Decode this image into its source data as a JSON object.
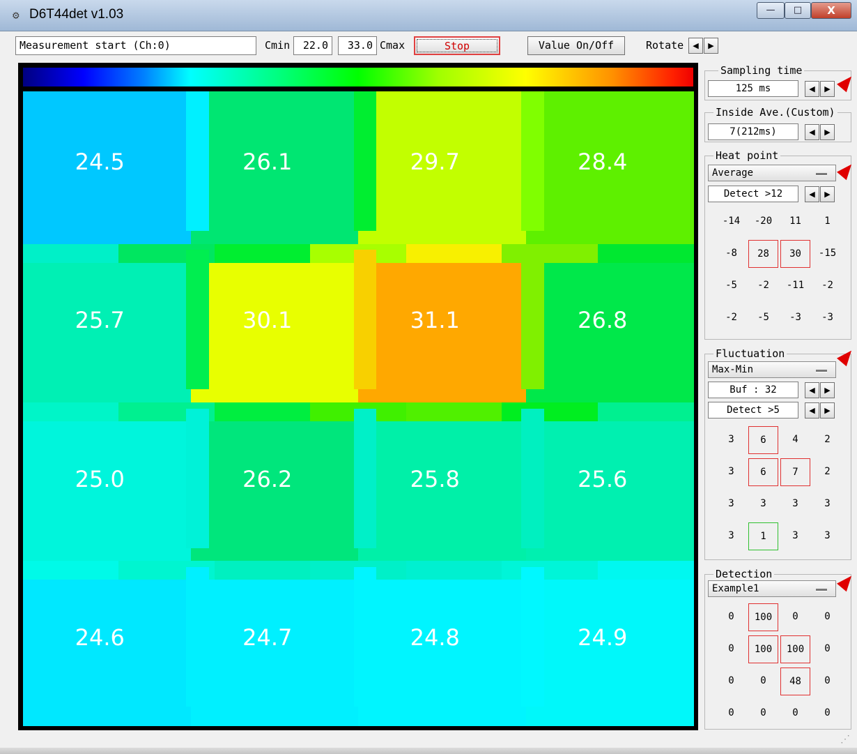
{
  "window": {
    "title": "D6T44det  v1.03",
    "min_glyph": "—",
    "max_glyph": "□",
    "close_glyph": "X"
  },
  "toolbar": {
    "status": "Measurement start (Ch:0)",
    "cmin_label": "Cmin",
    "cmin_value": "22.0",
    "cmax_value": "33.0",
    "cmax_label": "Cmax",
    "stop_label": "Stop",
    "value_toggle_label": "Value On/Off",
    "rotate_label": "Rotate"
  },
  "heatmap": {
    "cells": [
      {
        "value": "24.5",
        "color": "#00c8ff"
      },
      {
        "value": "26.1",
        "color": "#00e672"
      },
      {
        "value": "29.7",
        "color": "#c2ff00"
      },
      {
        "value": "28.4",
        "color": "#5ef000"
      },
      {
        "value": "25.7",
        "color": "#00f0b4"
      },
      {
        "value": "30.1",
        "color": "#e8ff00"
      },
      {
        "value": "31.1",
        "color": "#ffa800"
      },
      {
        "value": "26.8",
        "color": "#00e84a"
      },
      {
        "value": "25.0",
        "color": "#00f5dc"
      },
      {
        "value": "26.2",
        "color": "#00e67c"
      },
      {
        "value": "25.8",
        "color": "#00f0a8"
      },
      {
        "value": "25.6",
        "color": "#00f0b0"
      },
      {
        "value": "24.6",
        "color": "#00e8ff"
      },
      {
        "value": "24.7",
        "color": "#00f0ff"
      },
      {
        "value": "24.8",
        "color": "#00f5ff"
      },
      {
        "value": "24.9",
        "color": "#00f8fa"
      }
    ],
    "hband_colors": [
      [
        "#00f0c8",
        "#00e660",
        "#00ee30",
        "#a8ff00",
        "#f8f000",
        "#80f000",
        "#00e830"
      ],
      [
        "#00f5c8",
        "#00f090",
        "#00ee40",
        "#40f000",
        "#50f000",
        "#00ee20",
        "#00f090"
      ],
      [
        "#00fae8",
        "#00f5d0",
        "#00f0c0",
        "#00f0c8",
        "#00f0d0",
        "#00f5d8",
        "#00f8f0"
      ]
    ],
    "vband_colors": [
      [
        "#00f0ff",
        "#00ee30",
        "#80ff00"
      ],
      [
        "#00ee50",
        "#f8d000",
        "#80f000"
      ],
      [
        "#00f2d8",
        "#00f0c8",
        "#00f0c0"
      ],
      [
        "#00f0ff",
        "#00f5ff",
        "#00f8ff"
      ]
    ]
  },
  "sampling": {
    "label": "Sampling time",
    "value": "125 ms"
  },
  "inside_ave": {
    "label": "Inside Ave.(Custom)",
    "value": "7(212ms)"
  },
  "heat_point": {
    "label": "Heat point",
    "mode": "Average",
    "detect": "Detect >12",
    "grid": [
      {
        "v": "-14",
        "b": ""
      },
      {
        "v": "-20",
        "b": ""
      },
      {
        "v": "11",
        "b": ""
      },
      {
        "v": "1",
        "b": ""
      },
      {
        "v": "-8",
        "b": ""
      },
      {
        "v": "28",
        "b": "red"
      },
      {
        "v": "30",
        "b": "red"
      },
      {
        "v": "-15",
        "b": ""
      },
      {
        "v": "-5",
        "b": ""
      },
      {
        "v": "-2",
        "b": ""
      },
      {
        "v": "-11",
        "b": ""
      },
      {
        "v": "-2",
        "b": ""
      },
      {
        "v": "-2",
        "b": ""
      },
      {
        "v": "-5",
        "b": ""
      },
      {
        "v": "-3",
        "b": ""
      },
      {
        "v": "-3",
        "b": ""
      }
    ]
  },
  "fluctuation": {
    "label": "Fluctuation",
    "mode": "Max-Min",
    "buf": "Buf : 32",
    "detect": "Detect >5",
    "grid": [
      {
        "v": "3",
        "b": ""
      },
      {
        "v": "6",
        "b": "red"
      },
      {
        "v": "4",
        "b": ""
      },
      {
        "v": "2",
        "b": ""
      },
      {
        "v": "3",
        "b": ""
      },
      {
        "v": "6",
        "b": "red"
      },
      {
        "v": "7",
        "b": "red"
      },
      {
        "v": "2",
        "b": ""
      },
      {
        "v": "3",
        "b": ""
      },
      {
        "v": "3",
        "b": ""
      },
      {
        "v": "3",
        "b": ""
      },
      {
        "v": "3",
        "b": ""
      },
      {
        "v": "3",
        "b": ""
      },
      {
        "v": "1",
        "b": "green"
      },
      {
        "v": "3",
        "b": ""
      },
      {
        "v": "3",
        "b": ""
      }
    ]
  },
  "detection": {
    "label": "Detection",
    "mode": "Example1",
    "grid": [
      {
        "v": "0",
        "b": ""
      },
      {
        "v": "100",
        "b": "red"
      },
      {
        "v": "0",
        "b": ""
      },
      {
        "v": "0",
        "b": ""
      },
      {
        "v": "0",
        "b": ""
      },
      {
        "v": "100",
        "b": "red"
      },
      {
        "v": "100",
        "b": "red"
      },
      {
        "v": "0",
        "b": ""
      },
      {
        "v": "0",
        "b": ""
      },
      {
        "v": "0",
        "b": ""
      },
      {
        "v": "48",
        "b": "red"
      },
      {
        "v": "0",
        "b": ""
      },
      {
        "v": "0",
        "b": ""
      },
      {
        "v": "0",
        "b": ""
      },
      {
        "v": "0",
        "b": ""
      },
      {
        "v": "0",
        "b": ""
      }
    ]
  },
  "arrows": {
    "left": "◀",
    "right": "▶"
  },
  "annotation_color": "#e00000"
}
